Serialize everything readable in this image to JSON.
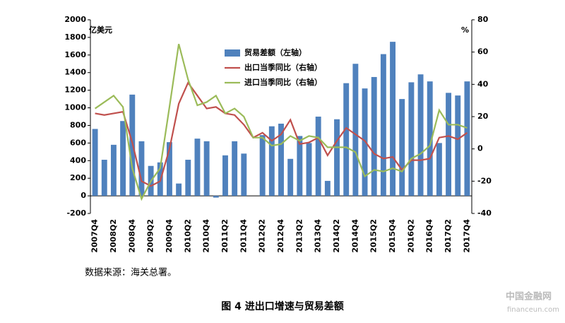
{
  "chart_data": {
    "type": "bar-line",
    "categories": [
      "2007Q4",
      null,
      "2008Q2",
      null,
      "2008Q4",
      null,
      "2009Q2",
      null,
      "2009Q4",
      null,
      "2010Q2",
      null,
      "2010Q4",
      null,
      "2011Q2",
      null,
      "2011Q4",
      null,
      "2012Q2",
      null,
      "2012Q4",
      null,
      "2013Q2",
      null,
      "2013Q4",
      null,
      "2014Q2",
      null,
      "2014Q4",
      null,
      "2015Q2",
      null,
      "2015Q4",
      null,
      "2016Q2",
      null,
      "2016Q4",
      null,
      "2017Q2",
      null,
      "2017Q4"
    ],
    "y_label": "亿美元",
    "y2_label": "%",
    "ylim": [
      -200,
      2000
    ],
    "yticks": [
      -200,
      0,
      200,
      400,
      600,
      800,
      1000,
      1200,
      1400,
      1600,
      1800,
      2000
    ],
    "y2lim": [
      -40,
      80
    ],
    "y2ticks": [
      -40,
      -20,
      0,
      20,
      40,
      60,
      80
    ],
    "series": [
      {
        "name": "贸易差额（左轴）",
        "type": "bar",
        "color": "#4f81bd",
        "values": [
          760,
          410,
          580,
          850,
          1150,
          620,
          340,
          380,
          610,
          140,
          410,
          650,
          620,
          -20,
          460,
          620,
          480,
          0,
          690,
          790,
          820,
          420,
          680,
          600,
          900,
          170,
          870,
          1280,
          1500,
          1220,
          1350,
          1610,
          1750,
          1100,
          1290,
          1380,
          1300,
          600,
          1170,
          1140,
          1300
        ]
      },
      {
        "name": "出口当季同比（右轴）",
        "type": "line",
        "axis": "y2",
        "color": "#c0504d",
        "values": [
          22,
          21,
          22,
          23,
          4,
          -20,
          -23,
          -20,
          0,
          28,
          41,
          33,
          25,
          26,
          22,
          21,
          15,
          7,
          10,
          5,
          9,
          18,
          3,
          4,
          7,
          -4,
          5,
          13,
          9,
          5,
          -3,
          -6,
          -5,
          -13,
          -7,
          -7,
          -6,
          7,
          8,
          6,
          10
        ]
      },
      {
        "name": "进口当季同比（右轴）",
        "type": "line",
        "axis": "y2",
        "color": "#9bbb59",
        "values": [
          25,
          29,
          33,
          26,
          -12,
          -31,
          -20,
          -12,
          26,
          65,
          43,
          27,
          29,
          33,
          22,
          25,
          20,
          7,
          7,
          2,
          3,
          8,
          5,
          8,
          7,
          1,
          1,
          1,
          -2,
          -17,
          -13,
          -14,
          -12,
          -14,
          -6,
          -3,
          2,
          24,
          15,
          15,
          13
        ]
      }
    ],
    "legend": "upper-center",
    "source": "数据来源：海关总署。",
    "caption": "图 4 进出口增速与贸易差额",
    "watermark": "中国金融网",
    "watermark_url": "financeun.com"
  }
}
